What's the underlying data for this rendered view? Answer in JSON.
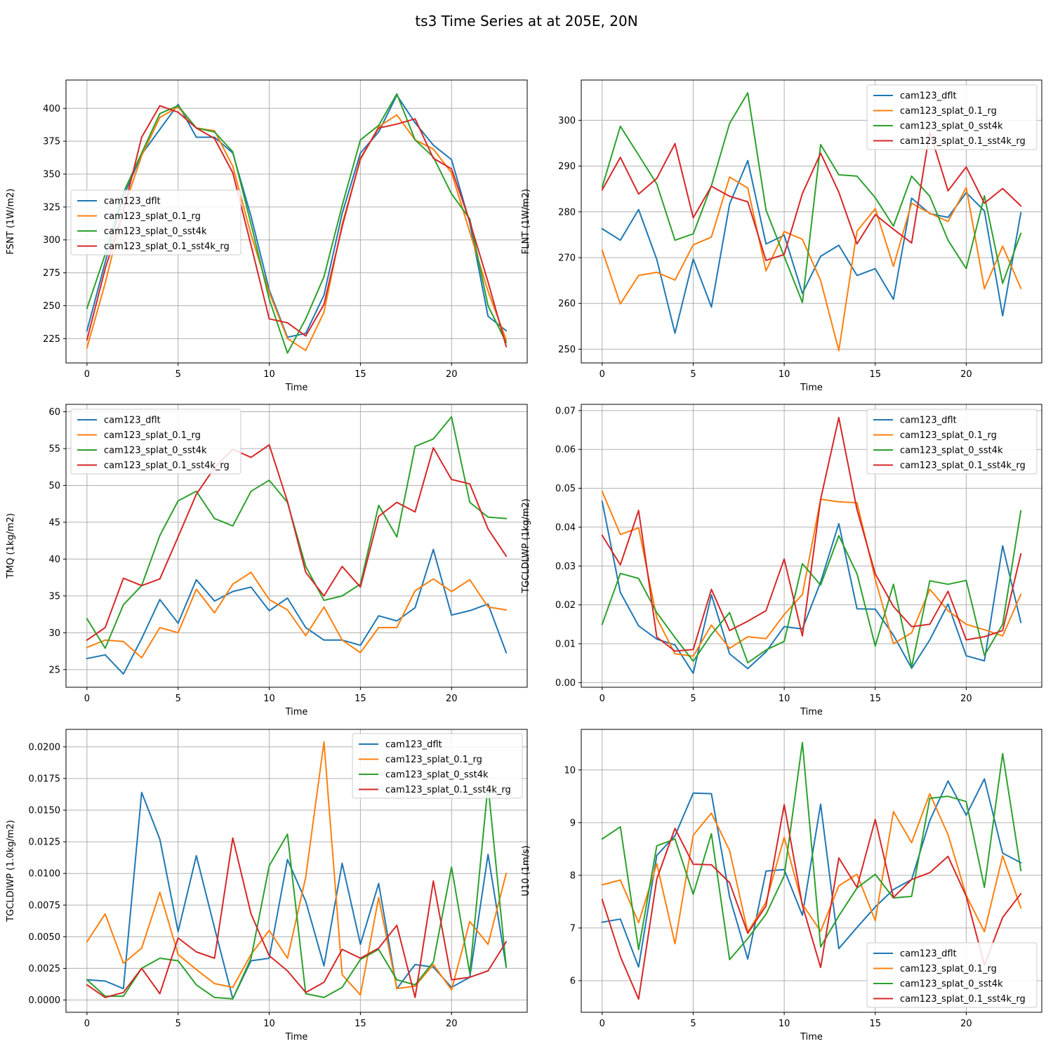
{
  "figure_title": "ts3 Time Series at at 205E, 20N",
  "colors": {
    "series": [
      "#1f77b4",
      "#ff7f0e",
      "#2ca02c",
      "#d62728"
    ],
    "grid": "#b0b0b0"
  },
  "chart_data": [
    {
      "type": "line",
      "xlabel": "Time",
      "ylabel": "FSNT (1W/m2)",
      "xlim": [
        -1.15,
        24.15
      ],
      "ylim": [
        206.5,
        421.5
      ],
      "xticks": [
        0,
        5,
        10,
        15,
        20
      ],
      "yticks": [
        225,
        250,
        275,
        300,
        325,
        350,
        375,
        400
      ],
      "ytick_labels": [
        "225",
        "250",
        "275",
        "300",
        "325",
        "350",
        "375",
        "400"
      ],
      "legend_position": "center-left",
      "x": [
        0,
        1,
        2,
        3,
        4,
        5,
        6,
        7,
        8,
        9,
        10,
        11,
        12,
        13,
        14,
        15,
        16,
        17,
        18,
        19,
        20,
        21,
        22,
        23
      ],
      "series": [
        {
          "name": "cam123_dflt",
          "values": [
            231,
            283,
            333,
            365,
            384,
            403,
            378,
            378,
            366,
            318,
            262,
            226,
            229,
            258,
            320,
            366,
            382,
            410,
            389,
            372,
            361,
            313,
            242,
            231
          ]
        },
        {
          "name": "cam123_splat_0.1_rg",
          "values": [
            218,
            267,
            323,
            364,
            393,
            401,
            385,
            383,
            356,
            304,
            260,
            225,
            216,
            245,
            312,
            361,
            386,
            395,
            376,
            369,
            351,
            306,
            261,
            224
          ]
        },
        {
          "name": "cam123_splat_0_sst4k",
          "values": [
            248,
            289,
            336,
            366,
            396,
            402,
            385,
            382,
            367,
            312,
            255,
            214,
            240,
            272,
            326,
            376,
            387,
            411,
            376,
            363,
            335,
            316,
            250,
            222
          ]
        },
        {
          "name": "cam123_splat_0.1_sst4k_rg",
          "values": [
            224,
            278,
            322,
            378,
            402,
            397,
            385,
            377,
            351,
            296,
            240,
            237,
            227,
            251,
            310,
            362,
            385,
            388,
            392,
            362,
            354,
            314,
            268,
            219
          ]
        }
      ]
    },
    {
      "type": "line",
      "xlabel": "Time",
      "ylabel": "FLNT (1W/m2)",
      "xlim": [
        -1.15,
        24.15
      ],
      "ylim": [
        247.0,
        308.8
      ],
      "xticks": [
        0,
        5,
        10,
        15,
        20
      ],
      "yticks": [
        250,
        260,
        270,
        280,
        290,
        300
      ],
      "ytick_labels": [
        "250",
        "260",
        "270",
        "280",
        "290",
        "300"
      ],
      "legend_position": "top-right",
      "x": [
        0,
        1,
        2,
        3,
        4,
        5,
        6,
        7,
        8,
        9,
        10,
        11,
        12,
        13,
        14,
        15,
        16,
        17,
        18,
        19,
        20,
        21,
        22,
        23
      ],
      "series": [
        {
          "name": "cam123_dflt",
          "values": [
            276.3,
            273.8,
            280.5,
            269.6,
            253.5,
            269.7,
            259.2,
            281.7,
            291.2,
            273.0,
            274.9,
            262.2,
            270.3,
            272.7,
            266.1,
            267.6,
            260.9,
            283.0,
            279.6,
            278.8,
            284.2,
            280.2,
            257.3,
            279.8
          ]
        },
        {
          "name": "cam123_splat_0.1_rg",
          "values": [
            271.6,
            259.9,
            266.1,
            266.8,
            265.1,
            272.8,
            274.5,
            287.6,
            285.2,
            267.1,
            275.7,
            274.0,
            265.0,
            249.7,
            275.8,
            280.7,
            268.1,
            281.9,
            279.7,
            277.9,
            285.3,
            263.2,
            272.5,
            263.3
          ]
        },
        {
          "name": "cam123_splat_0_sst4k",
          "values": [
            285.4,
            298.7,
            292.4,
            286.1,
            273.8,
            275.2,
            285.7,
            299.3,
            306.0,
            280.4,
            270.3,
            260.2,
            294.7,
            288.1,
            287.8,
            283.1,
            276.9,
            287.8,
            283.4,
            273.8,
            267.6,
            283.5,
            264.4,
            275.3
          ]
        },
        {
          "name": "cam123_splat_0.1_sst4k_rg",
          "values": [
            284.8,
            291.9,
            283.9,
            287.3,
            294.9,
            278.7,
            285.6,
            283.4,
            282.2,
            269.4,
            270.7,
            284.0,
            292.8,
            284.3,
            273.0,
            279.4,
            276.2,
            273.2,
            297.5,
            284.6,
            289.8,
            281.9,
            285.1,
            281.3
          ]
        }
      ]
    },
    {
      "type": "line",
      "xlabel": "Time",
      "ylabel": "TMQ (1kg/m2)",
      "xlim": [
        -1.15,
        24.15
      ],
      "ylim": [
        22.6,
        61.0
      ],
      "xticks": [
        0,
        5,
        10,
        15,
        20
      ],
      "yticks": [
        25,
        30,
        35,
        40,
        45,
        50,
        55,
        60
      ],
      "ytick_labels": [
        "25",
        "30",
        "35",
        "40",
        "45",
        "50",
        "55",
        "60"
      ],
      "legend_position": "top-left",
      "x": [
        0,
        1,
        2,
        3,
        4,
        5,
        6,
        7,
        8,
        9,
        10,
        11,
        12,
        13,
        14,
        15,
        16,
        17,
        18,
        19,
        20,
        21,
        22,
        23
      ],
      "series": [
        {
          "name": "cam123_dflt",
          "values": [
            26.5,
            27.0,
            24.4,
            29.2,
            34.5,
            31.3,
            37.2,
            34.3,
            35.6,
            36.2,
            33.0,
            34.7,
            30.7,
            29.0,
            29.0,
            28.3,
            32.3,
            31.6,
            33.4,
            41.3,
            32.4,
            33.0,
            33.9,
            27.3
          ]
        },
        {
          "name": "cam123_splat_0.1_rg",
          "values": [
            28.0,
            29.0,
            28.8,
            26.6,
            30.7,
            30.0,
            35.9,
            32.7,
            36.6,
            38.2,
            34.5,
            33.1,
            29.6,
            33.5,
            29.0,
            27.3,
            30.7,
            30.7,
            35.7,
            37.3,
            35.6,
            37.2,
            33.5,
            33.1
          ]
        },
        {
          "name": "cam123_splat_0_sst4k",
          "values": [
            31.9,
            27.9,
            33.8,
            36.4,
            43.2,
            47.9,
            49.2,
            45.5,
            44.5,
            49.2,
            50.7,
            47.7,
            39.0,
            34.4,
            35.0,
            36.6,
            47.3,
            43.0,
            55.3,
            56.3,
            59.3,
            47.7,
            45.7,
            45.5
          ]
        },
        {
          "name": "cam123_splat_0.1_sst4k_rg",
          "values": [
            29.0,
            30.7,
            37.4,
            36.4,
            37.3,
            43.0,
            48.8,
            52.4,
            54.9,
            53.8,
            55.5,
            47.8,
            38.2,
            35.0,
            39.0,
            36.2,
            45.8,
            47.7,
            46.4,
            55.1,
            50.8,
            50.2,
            44.1,
            40.4
          ]
        }
      ]
    },
    {
      "type": "line",
      "xlabel": "Time",
      "ylabel": "TGCLDLWP (1kg/m2)",
      "xlim": [
        -1.15,
        24.15
      ],
      "ylim": [
        -0.0012,
        0.0716
      ],
      "xticks": [
        0,
        5,
        10,
        15,
        20
      ],
      "yticks": [
        0.0,
        0.01,
        0.02,
        0.03,
        0.04,
        0.05,
        0.06,
        0.07
      ],
      "ytick_labels": [
        "0.00",
        "0.01",
        "0.02",
        "0.03",
        "0.04",
        "0.05",
        "0.06",
        "0.07"
      ],
      "legend_position": "top-right",
      "x": [
        0,
        1,
        2,
        3,
        4,
        5,
        6,
        7,
        8,
        9,
        10,
        11,
        12,
        13,
        14,
        15,
        16,
        17,
        18,
        19,
        20,
        21,
        22,
        23
      ],
      "series": [
        {
          "name": "cam123_dflt",
          "values": [
            0.0466,
            0.0232,
            0.0146,
            0.0112,
            0.0097,
            0.0024,
            0.0226,
            0.0074,
            0.0036,
            0.0079,
            0.0144,
            0.0138,
            0.0259,
            0.0409,
            0.019,
            0.0189,
            0.0122,
            0.0037,
            0.011,
            0.0202,
            0.0069,
            0.0056,
            0.0352,
            0.0155
          ]
        },
        {
          "name": "cam123_splat_0.1_rg",
          "values": [
            0.0492,
            0.0381,
            0.0398,
            0.0166,
            0.0074,
            0.0068,
            0.0148,
            0.0088,
            0.0118,
            0.0113,
            0.0175,
            0.0227,
            0.0472,
            0.0465,
            0.0463,
            0.0266,
            0.01,
            0.0128,
            0.024,
            0.0185,
            0.015,
            0.0136,
            0.012,
            0.0227
          ]
        },
        {
          "name": "cam123_splat_0_sst4k",
          "values": [
            0.015,
            0.0281,
            0.0268,
            0.018,
            0.0116,
            0.0055,
            0.0124,
            0.018,
            0.0051,
            0.0084,
            0.0106,
            0.0306,
            0.0251,
            0.0378,
            0.028,
            0.0094,
            0.0253,
            0.004,
            0.0262,
            0.0253,
            0.0263,
            0.007,
            0.015,
            0.0442
          ]
        },
        {
          "name": "cam123_splat_0.1_sst4k_rg",
          "values": [
            0.0379,
            0.0303,
            0.0443,
            0.0117,
            0.0081,
            0.0085,
            0.024,
            0.0134,
            0.0158,
            0.0185,
            0.0318,
            0.012,
            0.0472,
            0.0682,
            0.0445,
            0.028,
            0.0196,
            0.0144,
            0.015,
            0.0235,
            0.011,
            0.0118,
            0.0134,
            0.0331
          ]
        }
      ]
    },
    {
      "type": "line",
      "xlabel": "Time",
      "ylabel": "TGCLDIWP (1.0kg/m2)",
      "xlim": [
        -1.15,
        24.15
      ],
      "ylim": [
        -0.00097,
        0.02138
      ],
      "xticks": [
        0,
        5,
        10,
        15,
        20
      ],
      "yticks": [
        0.0,
        0.0025,
        0.005,
        0.0075,
        0.01,
        0.0125,
        0.015,
        0.0175,
        0.02
      ],
      "ytick_labels": [
        "0.0000",
        "0.0025",
        "0.0050",
        "0.0075",
        "0.0100",
        "0.0125",
        "0.0150",
        "0.0175",
        "0.0200"
      ],
      "legend_position": "top-right",
      "x": [
        0,
        1,
        2,
        3,
        4,
        5,
        6,
        7,
        8,
        9,
        10,
        11,
        12,
        13,
        14,
        15,
        16,
        17,
        18,
        19,
        20,
        21,
        22,
        23
      ],
      "series": [
        {
          "name": "cam123_dflt",
          "values": [
            0.0016,
            0.0015,
            0.0009,
            0.0164,
            0.0127,
            0.0054,
            0.0114,
            0.0057,
            0.0001,
            0.0031,
            0.0033,
            0.0111,
            0.0078,
            0.0027,
            0.0108,
            0.0044,
            0.0092,
            0.0009,
            0.0028,
            0.0026,
            0.001,
            0.0018,
            0.0115,
            0.0026
          ]
        },
        {
          "name": "cam123_splat_0.1_rg",
          "values": [
            0.0046,
            0.0068,
            0.0029,
            0.0041,
            0.0085,
            0.0036,
            0.0024,
            0.0013,
            0.001,
            0.0036,
            0.0055,
            0.0033,
            0.0097,
            0.0204,
            0.002,
            0.0004,
            0.0081,
            0.0009,
            0.0011,
            0.0028,
            0.0008,
            0.0062,
            0.0044,
            0.01
          ]
        },
        {
          "name": "cam123_splat_0_sst4k",
          "values": [
            0.0016,
            0.0003,
            0.0003,
            0.0025,
            0.0033,
            0.0031,
            0.0012,
            0.0002,
            0.0001,
            0.0033,
            0.0106,
            0.0131,
            0.0005,
            0.0002,
            0.001,
            0.0032,
            0.004,
            0.0016,
            0.0012,
            0.003,
            0.0105,
            0.0021,
            0.017,
            0.0026
          ]
        },
        {
          "name": "cam123_splat_0.1_sst4k_rg",
          "values": [
            0.0012,
            0.0002,
            0.0006,
            0.0025,
            0.0005,
            0.0049,
            0.0038,
            0.0033,
            0.0128,
            0.0068,
            0.0035,
            0.0023,
            0.0006,
            0.0014,
            0.004,
            0.0033,
            0.0041,
            0.0059,
            0.0002,
            0.0094,
            0.0016,
            0.0018,
            0.0023,
            0.0046
          ]
        }
      ]
    },
    {
      "type": "line",
      "xlabel": "Time",
      "ylabel": "U10 (1m/s)",
      "xlim": [
        -1.15,
        24.15
      ],
      "ylim": [
        5.4,
        10.77
      ],
      "xticks": [
        0,
        5,
        10,
        15,
        20
      ],
      "yticks": [
        6,
        7,
        8,
        9,
        10
      ],
      "ytick_labels": [
        "6",
        "7",
        "8",
        "9",
        "10"
      ],
      "legend_position": "bottom-right",
      "x": [
        0,
        1,
        2,
        3,
        4,
        5,
        6,
        7,
        8,
        9,
        10,
        11,
        12,
        13,
        14,
        15,
        16,
        17,
        18,
        19,
        20,
        21,
        22,
        23
      ],
      "series": [
        {
          "name": "cam123_dflt",
          "values": [
            7.11,
            7.17,
            6.26,
            8.38,
            8.75,
            9.56,
            9.55,
            7.59,
            6.41,
            8.08,
            8.11,
            7.24,
            9.35,
            6.61,
            7.01,
            7.4,
            7.73,
            7.92,
            9.04,
            9.79,
            9.14,
            9.83,
            8.42,
            8.24
          ]
        },
        {
          "name": "cam123_splat_0.1_rg",
          "values": [
            7.82,
            7.91,
            7.1,
            8.22,
            6.7,
            8.76,
            9.18,
            8.47,
            6.92,
            7.49,
            8.72,
            7.45,
            6.94,
            7.8,
            8.02,
            7.14,
            9.21,
            8.62,
            9.55,
            8.77,
            7.62,
            6.93,
            8.37,
            7.38
          ]
        },
        {
          "name": "cam123_splat_0_sst4k",
          "values": [
            8.69,
            8.92,
            6.59,
            8.56,
            8.69,
            7.64,
            8.79,
            6.4,
            6.8,
            7.26,
            7.99,
            10.52,
            6.64,
            7.23,
            7.76,
            8.02,
            7.57,
            7.6,
            9.46,
            9.5,
            9.4,
            7.77,
            10.31,
            8.09
          ]
        },
        {
          "name": "cam123_splat_0.1_sst4k_rg",
          "values": [
            7.54,
            6.46,
            5.65,
            7.93,
            8.89,
            8.21,
            8.2,
            7.86,
            6.9,
            7.42,
            9.34,
            7.43,
            6.25,
            8.33,
            7.77,
            9.06,
            7.58,
            7.92,
            8.05,
            8.36,
            7.6,
            6.3,
            7.2,
            7.65
          ]
        }
      ]
    }
  ]
}
